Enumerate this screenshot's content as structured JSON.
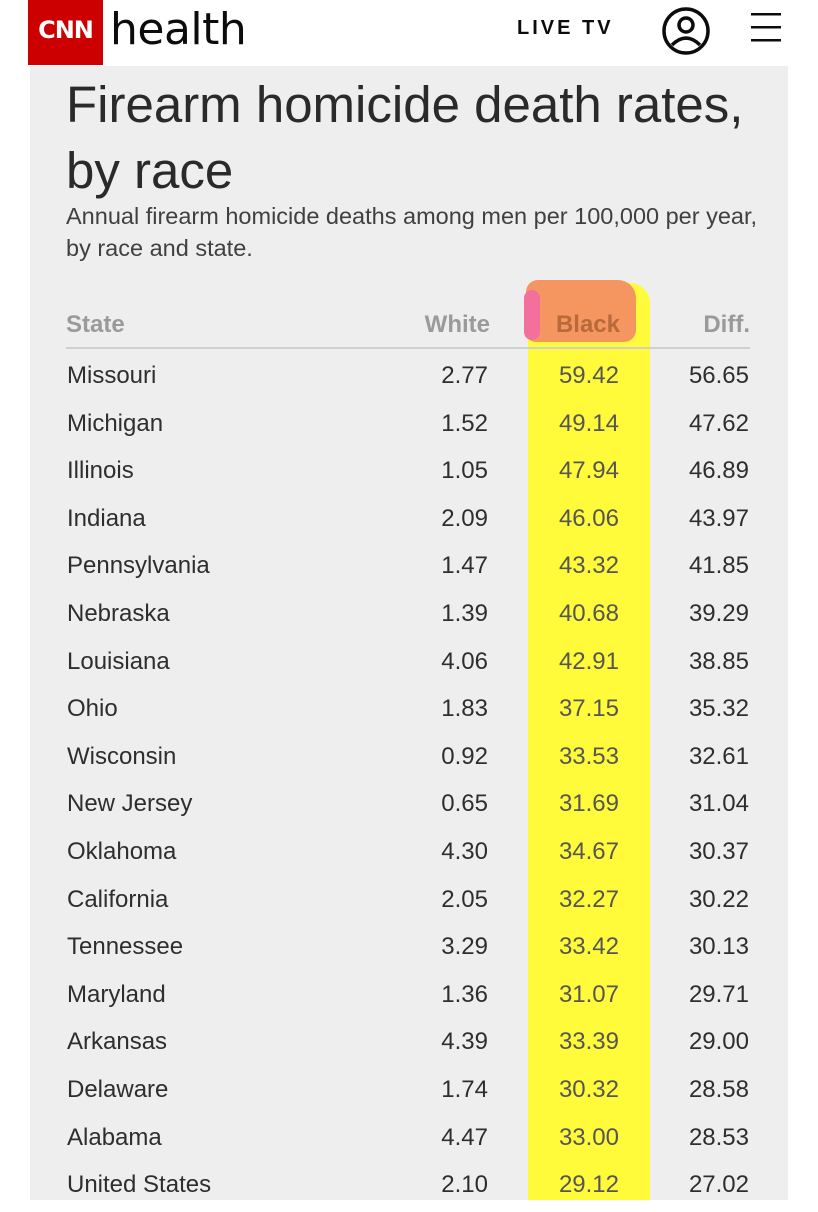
{
  "header": {
    "logo_text": "CNN",
    "section": "health",
    "live_tv": "LIVE TV",
    "brand_color": "#cc0000"
  },
  "article": {
    "title": "Firearm homicide death rates, by race",
    "subtitle": "Annual firearm homicide deaths among men per 100,000 per year, by race and state."
  },
  "table": {
    "columns": [
      "State",
      "White",
      "Black",
      "Diff."
    ],
    "rows": [
      {
        "state": "Missouri",
        "white": "2.77",
        "black": "59.42",
        "diff": "56.65"
      },
      {
        "state": "Michigan",
        "white": "1.52",
        "black": "49.14",
        "diff": "47.62"
      },
      {
        "state": "Illinois",
        "white": "1.05",
        "black": "47.94",
        "diff": "46.89"
      },
      {
        "state": "Indiana",
        "white": "2.09",
        "black": "46.06",
        "diff": "43.97"
      },
      {
        "state": "Pennsylvania",
        "white": "1.47",
        "black": "43.32",
        "diff": "41.85"
      },
      {
        "state": "Nebraska",
        "white": "1.39",
        "black": "40.68",
        "diff": "39.29"
      },
      {
        "state": "Louisiana",
        "white": "4.06",
        "black": "42.91",
        "diff": "38.85"
      },
      {
        "state": "Ohio",
        "white": "1.83",
        "black": "37.15",
        "diff": "35.32"
      },
      {
        "state": "Wisconsin",
        "white": "0.92",
        "black": "33.53",
        "diff": "32.61"
      },
      {
        "state": "New Jersey",
        "white": "0.65",
        "black": "31.69",
        "diff": "31.04"
      },
      {
        "state": "Oklahoma",
        "white": "4.30",
        "black": "34.67",
        "diff": "30.37"
      },
      {
        "state": "California",
        "white": "2.05",
        "black": "32.27",
        "diff": "30.22"
      },
      {
        "state": "Tennessee",
        "white": "3.29",
        "black": "33.42",
        "diff": "30.13"
      },
      {
        "state": "Maryland",
        "white": "1.36",
        "black": "31.07",
        "diff": "29.71"
      },
      {
        "state": "Arkansas",
        "white": "4.39",
        "black": "33.39",
        "diff": "29.00"
      },
      {
        "state": "Delaware",
        "white": "1.74",
        "black": "30.32",
        "diff": "28.58"
      },
      {
        "state": "Alabama",
        "white": "4.47",
        "black": "33.00",
        "diff": "28.53"
      },
      {
        "state": "United States",
        "white": "2.10",
        "black": "29.12",
        "diff": "27.02"
      }
    ]
  },
  "highlight_colors": {
    "yellow": "#fffb3a",
    "orange": "#f59660",
    "pink": "#f36f9c"
  }
}
